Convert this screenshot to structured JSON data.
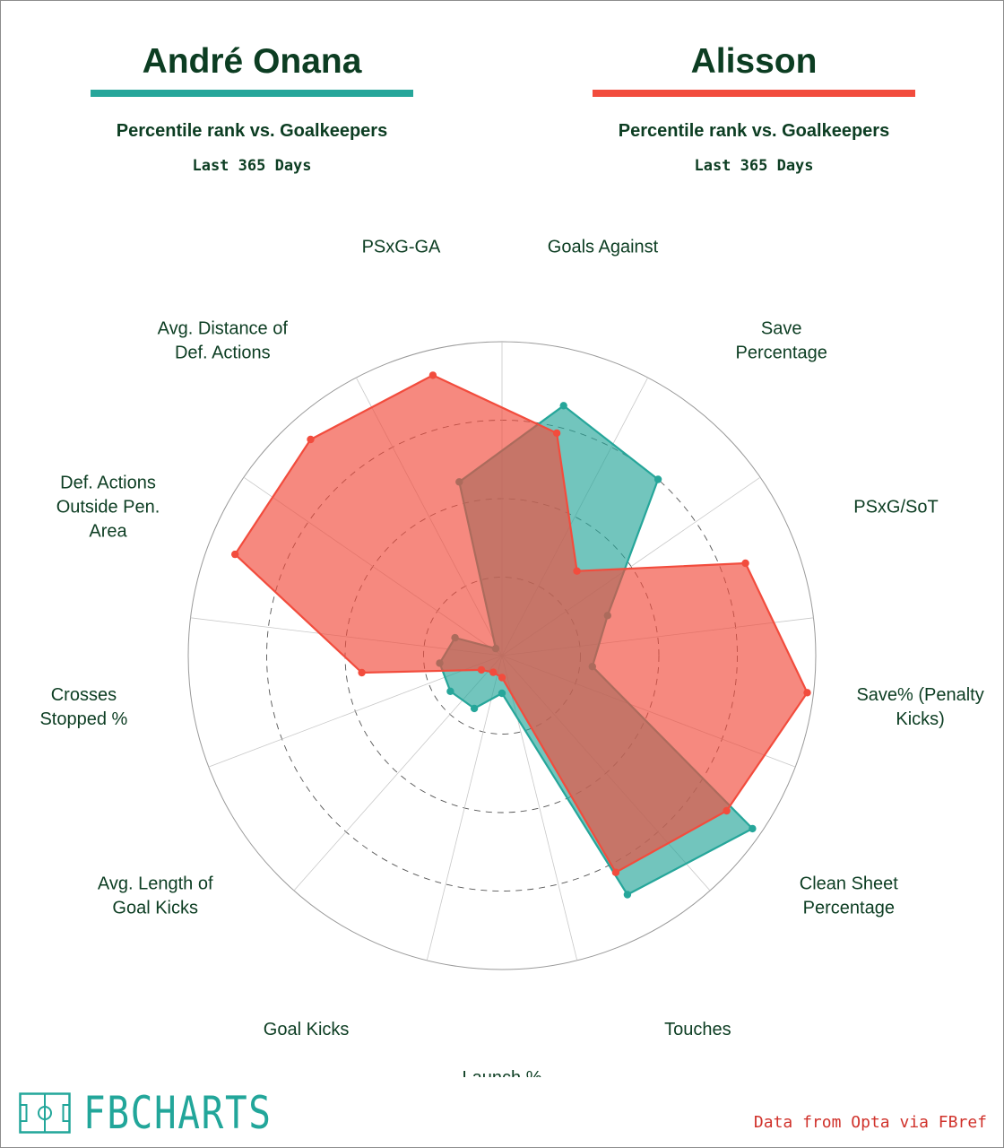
{
  "header": {
    "left": {
      "name": "André Onana",
      "subtitle": "Percentile rank vs. Goalkeepers",
      "period": "Last 365 Days"
    },
    "right": {
      "name": "Alisson",
      "subtitle": "Percentile rank vs. Goalkeepers",
      "period": "Last 365 Days"
    }
  },
  "colors": {
    "onana": "#26a69a",
    "alisson": "#f24c3d",
    "text": "#0c3d22"
  },
  "chart_data": {
    "type": "radar",
    "rlim": [
      0,
      100
    ],
    "grid": true,
    "categories": [
      "Goals Against",
      "Save Percentage",
      "PSxG/SoT",
      "Save% (Penalty Kicks)",
      "Clean Sheet Percentage",
      "Touches",
      "Launch %",
      "Goal Kicks",
      "Avg. Length of Goal Kicks",
      "Crosses Stopped %",
      "Def. Actions Outside Pen. Area",
      "Avg. Distance of Def. Actions",
      "PSxG-GA"
    ],
    "label_lines": [
      [
        "Goals Against"
      ],
      [
        "Save",
        "Percentage"
      ],
      [
        "PSxG/SoT"
      ],
      [
        "Save% (Penalty",
        "Kicks)"
      ],
      [
        "Clean Sheet",
        "Percentage"
      ],
      [
        "Touches"
      ],
      [
        "Launch %"
      ],
      [
        "Goal Kicks"
      ],
      [
        "Avg. Length of",
        "Goal Kicks"
      ],
      [
        "Crosses",
        "Stopped %"
      ],
      [
        "Def. Actions",
        "Outside Pen.",
        "Area"
      ],
      [
        "Avg. Distance of",
        "Def. Actions"
      ],
      [
        "PSxG-GA"
      ]
    ],
    "series": [
      {
        "name": "André Onana",
        "color": "#26a69a",
        "values": [
          82,
          75,
          36,
          29,
          97,
          86,
          12,
          19,
          20,
          20,
          16,
          3,
          57
        ]
      },
      {
        "name": "Alisson",
        "color": "#f24c3d",
        "values": [
          73,
          36,
          83,
          98,
          87,
          78,
          7,
          6,
          8,
          45,
          91,
          92,
          92
        ]
      }
    ]
  },
  "footer": {
    "brand": "FBCHARTS",
    "source": "Data from Opta via FBref"
  }
}
